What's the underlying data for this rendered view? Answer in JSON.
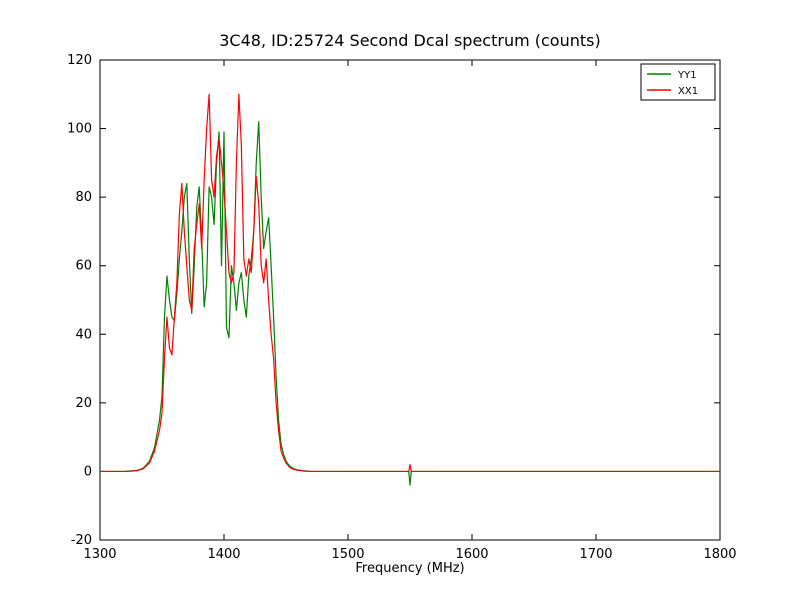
{
  "figure": {
    "background": "#ffffff",
    "frame_color": "#000000"
  },
  "chart_data": {
    "type": "line",
    "title": "3C48, ID:25724 Second Dcal spectrum (counts)",
    "xlabel": "Frequency (MHz)",
    "ylabel": "",
    "xlim": [
      1300,
      1800
    ],
    "ylim": [
      -20,
      120
    ],
    "xticks": [
      1300,
      1400,
      1500,
      1600,
      1700,
      1800
    ],
    "yticks": [
      -20,
      0,
      20,
      40,
      60,
      80,
      100,
      120
    ],
    "grid": false,
    "legend_position": "upper right",
    "x": [
      1300,
      1310,
      1320,
      1330,
      1335,
      1340,
      1344,
      1348,
      1350,
      1352,
      1354,
      1356,
      1358,
      1360,
      1362,
      1364,
      1366,
      1368,
      1370,
      1372,
      1374,
      1376,
      1378,
      1380,
      1382,
      1384,
      1386,
      1388,
      1390,
      1392,
      1394,
      1396,
      1398,
      1400,
      1402,
      1404,
      1406,
      1408,
      1410,
      1412,
      1414,
      1416,
      1418,
      1420,
      1422,
      1424,
      1426,
      1428,
      1430,
      1432,
      1434,
      1436,
      1438,
      1440,
      1442,
      1444,
      1446,
      1448,
      1450,
      1453,
      1456,
      1460,
      1465,
      1470,
      1480,
      1500,
      1540,
      1549,
      1550,
      1551,
      1560,
      1600,
      1650,
      1700,
      1750,
      1800
    ],
    "series": [
      {
        "name": "YY1",
        "color": "#008000",
        "values": [
          0,
          0,
          0,
          0.3,
          1,
          3,
          7,
          15,
          22,
          45,
          57,
          50,
          45,
          44,
          52,
          62,
          70,
          80,
          84,
          62,
          46,
          60,
          77,
          83,
          68,
          48,
          55,
          83,
          80,
          72,
          90,
          99,
          60,
          99,
          42,
          39,
          60,
          55,
          47,
          55,
          58,
          50,
          45,
          57,
          62,
          70,
          90,
          102,
          80,
          65,
          70,
          74,
          60,
          45,
          28,
          15,
          8,
          5,
          3,
          1.5,
          0.8,
          0.4,
          0.2,
          0,
          0,
          0,
          0,
          0,
          -4,
          0,
          0,
          0,
          0,
          0,
          0,
          0
        ]
      },
      {
        "name": "XX1",
        "color": "#ff0000",
        "values": [
          0,
          0,
          0,
          0.2,
          0.8,
          2.5,
          6,
          12,
          17,
          33,
          45,
          36,
          34,
          45,
          55,
          75,
          84,
          70,
          60,
          50,
          47,
          65,
          72,
          78,
          65,
          85,
          100,
          110,
          85,
          80,
          92,
          97,
          90,
          82,
          70,
          58,
          55,
          58,
          90,
          110,
          95,
          62,
          57,
          62,
          58,
          70,
          86,
          78,
          60,
          55,
          62,
          50,
          40,
          33,
          20,
          12,
          6,
          4,
          2.5,
          1.2,
          0.6,
          0.3,
          0.1,
          0,
          0,
          0,
          0,
          0,
          2,
          0,
          0,
          0,
          0,
          0,
          0,
          0
        ]
      }
    ]
  }
}
